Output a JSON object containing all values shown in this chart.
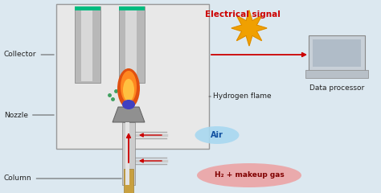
{
  "bg_color": "#dce8f0",
  "chamber_color": "#e8e8e8",
  "chamber_border": "#888888",
  "labels": {
    "collector": "Collector",
    "nozzle": "Nozzle",
    "column": "Column",
    "hydrogen_flame": "Hydrogen flame",
    "air": "Air",
    "h2_gas": "H₂ + makeup gas",
    "electrical_signal": "Electrical signal",
    "data_processor": "Data processor"
  },
  "label_color": "#222222",
  "red_label_color": "#cc0000",
  "air_bubble_color": "#a8d8f0",
  "h2_bubble_color": "#f09090",
  "star_color": "#f0a000",
  "arrow_color": "#cc0000",
  "dots_color": "#40a060",
  "column_color": "#c8a040"
}
